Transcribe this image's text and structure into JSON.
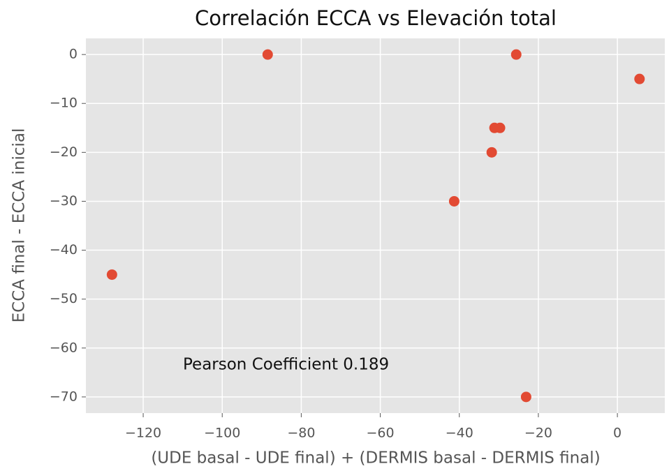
{
  "chart_data": {
    "type": "scatter",
    "title": "Correlación ECCA vs Elevación total",
    "xlabel": "(UDE basal - UDE final) + (DERMIS basal - DERMIS final)",
    "ylabel": "ECCA final - ECCA inicial",
    "annotation": "Pearson Coefficient 0.189",
    "series": [
      {
        "color": "#E24A33",
        "x": [
          -88.5,
          -25.6,
          5.6,
          -31.1,
          -29.7,
          -31.8,
          -41.3,
          -127.9,
          -23.1
        ],
        "values": [
          0,
          0,
          -5,
          -15,
          -15,
          -20,
          -30,
          -45,
          -70
        ]
      }
    ],
    "xlim": [
      -134.5,
      12
    ],
    "ylim": [
      -73.3,
      3.3
    ],
    "xticks": [
      {
        "value": -120,
        "label": "−120"
      },
      {
        "value": -100,
        "label": "−100"
      },
      {
        "value": -80,
        "label": "−80"
      },
      {
        "value": -60,
        "label": "−60"
      },
      {
        "value": -40,
        "label": "−40"
      },
      {
        "value": -20,
        "label": "−20"
      },
      0
    ],
    "yticks": [
      0,
      {
        "value": -10,
        "label": "−10"
      },
      {
        "value": -20,
        "label": "−20"
      },
      {
        "value": -30,
        "label": "−30"
      },
      {
        "value": -40,
        "label": "−40"
      },
      {
        "value": -50,
        "label": "−50"
      },
      {
        "value": -60,
        "label": "−60"
      },
      {
        "value": -70,
        "label": "−70"
      }
    ],
    "grid": true
  }
}
